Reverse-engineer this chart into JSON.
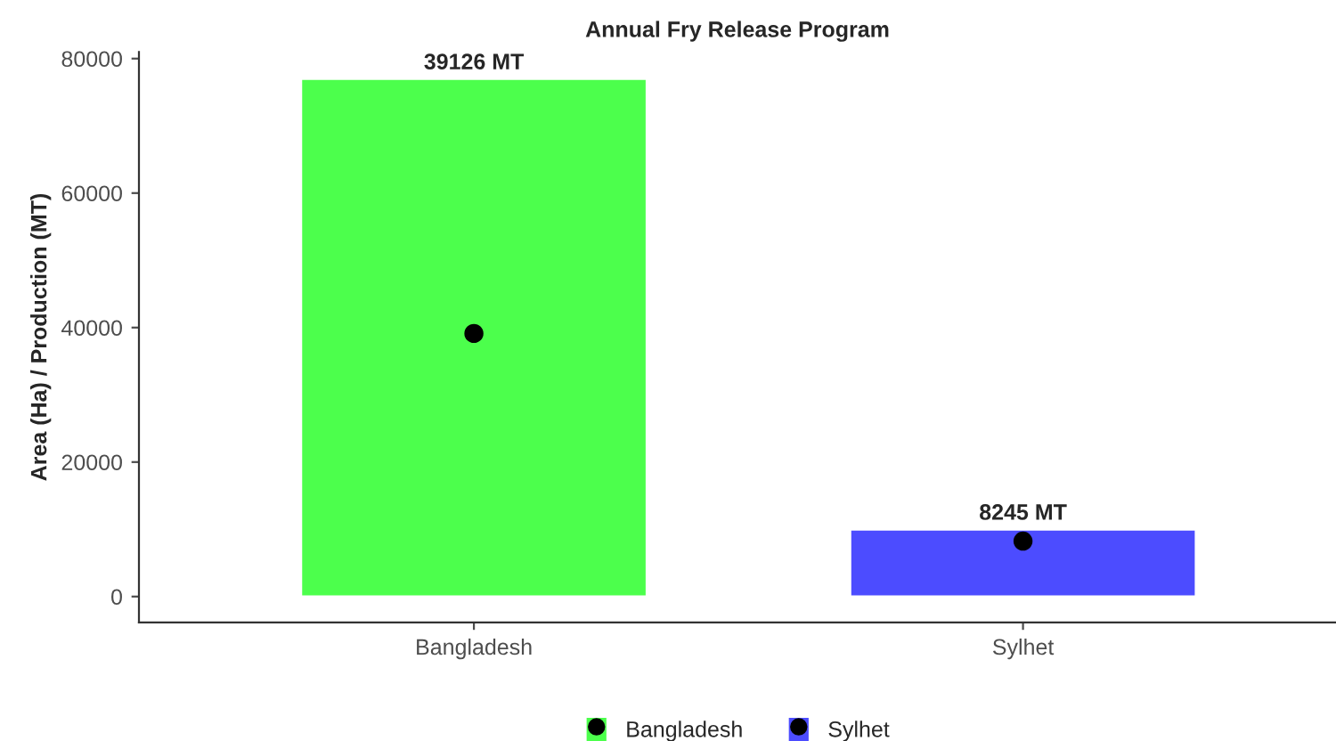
{
  "chart_data": {
    "type": "bar",
    "title": "Annual Fry Release Program",
    "ylabel": "Area (Ha) / Production (MT)",
    "categories": [
      "Bangladesh",
      "Sylhet"
    ],
    "series": [
      {
        "name": "Bangladesh",
        "color": "#4cff4c",
        "values": [
          77000,
          null
        ]
      },
      {
        "name": "Sylhet",
        "color": "#4c4cff",
        "values": [
          null,
          10000
        ]
      },
      {
        "type": "scatter",
        "color": "#000000",
        "values": [
          39126,
          8245
        ]
      }
    ],
    "annotations": [
      {
        "text": "39126 MT",
        "x": "Bangladesh",
        "y": 77000
      },
      {
        "text": "8245 MT",
        "x": "Sylhet",
        "y": 10000
      }
    ],
    "ylim": [
      -3850,
      81000
    ],
    "yticks": [
      0,
      20000,
      40000,
      60000,
      80000
    ],
    "legend": "bottom",
    "marker": "circle",
    "grid": false
  }
}
